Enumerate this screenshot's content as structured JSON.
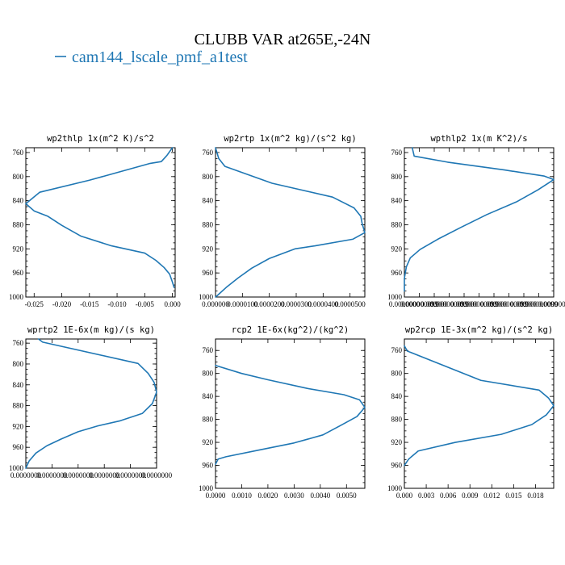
{
  "figure": {
    "title": "CLUBB VAR at265E,-24N",
    "legend_label": "cam144_lscale_pmf_a1test",
    "line_color": "#1f77b4"
  },
  "chart_data": [
    {
      "type": "line",
      "title": "wp2thlp  1x(m^2 K)/s^2",
      "xlim": [
        -0.0265,
        0.0005
      ],
      "ylim": [
        1000,
        752
      ],
      "x_ticks": [
        -0.025,
        -0.02,
        -0.015,
        -0.01,
        -0.005,
        0.0
      ],
      "x_tick_labels": [
        "-0.025",
        "-0.020",
        "-0.015",
        "-0.010",
        "-0.005",
        "0.000"
      ],
      "y_ticks": [
        760,
        800,
        840,
        880,
        920,
        960,
        1000
      ],
      "y_tick_labels": [
        "760",
        "800",
        "840",
        "880",
        "920",
        "960",
        "1000"
      ],
      "series": [
        {
          "points": [
            [
              0.0,
              752
            ],
            [
              -0.001,
              765
            ],
            [
              -0.002,
              775
            ],
            [
              -0.004,
              778
            ],
            [
              -0.015,
              806
            ],
            [
              -0.024,
              826
            ],
            [
              -0.0265,
              845
            ],
            [
              -0.025,
              857
            ],
            [
              -0.0225,
              866
            ],
            [
              -0.02,
              881
            ],
            [
              -0.0165,
              899
            ],
            [
              -0.011,
              915
            ],
            [
              -0.005,
              927
            ],
            [
              -0.003,
              939
            ],
            [
              -0.0015,
              951
            ],
            [
              -0.0005,
              962
            ],
            [
              0.0,
              975
            ],
            [
              0.0003,
              984
            ]
          ]
        }
      ]
    },
    {
      "type": "line",
      "title": "wp2rtp  1x(m^2 kg)/(s^2 kg)",
      "xlim": [
        0.0,
        5.55e-05
      ],
      "ylim": [
        1000,
        752
      ],
      "x_ticks": [
        0.0,
        1e-05,
        2e-05,
        3e-05,
        4e-05,
        5e-05
      ],
      "x_tick_labels": [
        "0.000000",
        "0.0000100",
        "0.0000200",
        "0.0000300",
        "0.0000400",
        "0.0000500"
      ],
      "y_ticks": [
        760,
        800,
        840,
        880,
        920,
        960,
        1000
      ],
      "y_tick_labels": [
        "760",
        "800",
        "840",
        "880",
        "920",
        "960",
        "1000"
      ],
      "series": [
        {
          "points": [
            [
              0.0,
              752
            ],
            [
              1.2e-06,
              770
            ],
            [
              3.5e-06,
              783
            ],
            [
              2.1e-05,
              811
            ],
            [
              4.35e-05,
              834
            ],
            [
              5.15e-05,
              852
            ],
            [
              5.4e-05,
              866
            ],
            [
              5.45e-05,
              878
            ],
            [
              5.55e-05,
              893
            ],
            [
              5.1e-05,
              904
            ],
            [
              3.7e-05,
              915
            ],
            [
              2.95e-05,
              920
            ],
            [
              2e-05,
              936
            ],
            [
              1.35e-05,
              952
            ],
            [
              8.5e-06,
              968
            ],
            [
              4e-06,
              984
            ],
            [
              8e-07,
              997
            ],
            [
              0.0,
              1000
            ]
          ]
        }
      ]
    },
    {
      "type": "line",
      "title": "wpthlp2  1x(m K^2)/s",
      "xlim": [
        0.0,
        3.8e-05
      ],
      "ylim": [
        1000,
        752
      ],
      "x_ticks": [
        0.0,
        3.8e-06,
        7.6e-06,
        1.14e-05,
        1.52e-05,
        1.9e-05,
        2.28e-05,
        2.66e-05,
        3.04e-05,
        3.42e-05,
        3.8e-05
      ],
      "x_tick_labels": [
        "0.0000000",
        "0.000000099",
        "0.000000",
        "0.000000099",
        "0.000000",
        "0.000000099",
        "0.000000",
        "0.000000099",
        "0.000000",
        "0.000000099",
        "0.0000000"
      ],
      "y_ticks": [
        760,
        800,
        840,
        880,
        920,
        960,
        1000
      ],
      "y_tick_labels": [
        "760",
        "800",
        "840",
        "880",
        "920",
        "960",
        "1000"
      ],
      "series": [
        {
          "points": [
            [
              2e-06,
              752
            ],
            [
              2.5e-06,
              766
            ],
            [
              1.1e-05,
              776
            ],
            [
              2.55e-05,
              789
            ],
            [
              3.55e-05,
              799
            ],
            [
              3.8e-05,
              805
            ],
            [
              3.4e-05,
              822
            ],
            [
              2.85e-05,
              842
            ],
            [
              2.1e-05,
              863
            ],
            [
              1.45e-05,
              884
            ],
            [
              8.5e-06,
              904
            ],
            [
              4e-06,
              921
            ],
            [
              1.5e-06,
              935
            ],
            [
              5e-07,
              950
            ],
            [
              0.0,
              969
            ],
            [
              0.0,
              990
            ]
          ]
        }
      ]
    },
    {
      "type": "line",
      "title": "wprtp2  1E-6x(m kg)/(s kg)",
      "xlim": [
        0.0,
        0.0155
      ],
      "ylim": [
        1000,
        752
      ],
      "x_ticks": [
        0.0,
        0.0031,
        0.0062,
        0.0093,
        0.0124,
        0.0155
      ],
      "x_tick_labels": [
        "0.0000000",
        "0.0000000",
        "0.0000000",
        "0.0000000",
        "0.0000000",
        "0.0000000"
      ],
      "y_ticks": [
        760,
        800,
        840,
        880,
        920,
        960,
        1000
      ],
      "y_tick_labels": [
        "760",
        "800",
        "840",
        "880",
        "920",
        "960",
        "1000"
      ],
      "series": [
        {
          "points": [
            [
              0.0015,
              752
            ],
            [
              0.002,
              758
            ],
            [
              0.0133,
              799
            ],
            [
              0.0145,
              818
            ],
            [
              0.0152,
              835
            ],
            [
              0.0155,
              854
            ],
            [
              0.015,
              876
            ],
            [
              0.0138,
              895
            ],
            [
              0.0112,
              909
            ],
            [
              0.0085,
              919
            ],
            [
              0.0062,
              930
            ],
            [
              0.0042,
              944
            ],
            [
              0.0025,
              957
            ],
            [
              0.0012,
              971
            ],
            [
              0.0004,
              986
            ],
            [
              0.0,
              1000
            ]
          ]
        }
      ]
    },
    {
      "type": "line",
      "title": "rcp2  1E-6x(kg^2)/(kg^2)",
      "xlim": [
        0.0,
        0.0057
      ],
      "ylim": [
        1000,
        740
      ],
      "x_ticks": [
        0.0,
        0.001,
        0.002,
        0.003,
        0.004,
        0.005
      ],
      "x_tick_labels": [
        "0.0000",
        "0.0010",
        "0.0020",
        "0.0030",
        "0.0040",
        "0.0050"
      ],
      "y_ticks": [
        760,
        800,
        840,
        880,
        920,
        960,
        1000
      ],
      "y_tick_labels": [
        "760",
        "800",
        "840",
        "880",
        "920",
        "960",
        "1000"
      ],
      "series": [
        {
          "points": [
            [
              0.0,
              786
            ],
            [
              0.001,
              800
            ],
            [
              0.002,
              811
            ],
            [
              0.0035,
              826
            ],
            [
              0.0049,
              837
            ],
            [
              0.0055,
              846
            ],
            [
              0.0057,
              859
            ],
            [
              0.0054,
              875
            ],
            [
              0.0048,
              890
            ],
            [
              0.0041,
              907
            ],
            [
              0.003,
              921
            ],
            [
              0.0017,
              933
            ],
            [
              0.0004,
              945
            ],
            [
              0.0001,
              949
            ],
            [
              0.0,
              958
            ]
          ]
        }
      ]
    },
    {
      "type": "line",
      "title": "wp2rcp  1E-3x(m^2 kg)/(s^2 kg)",
      "xlim": [
        0.0,
        0.0205
      ],
      "ylim": [
        1000,
        740
      ],
      "x_ticks": [
        0.0,
        0.003,
        0.006,
        0.009,
        0.012,
        0.015,
        0.018
      ],
      "x_tick_labels": [
        "0.000",
        "0.003",
        "0.006",
        "0.009",
        "0.012",
        "0.015",
        "0.018"
      ],
      "y_ticks": [
        760,
        800,
        840,
        880,
        920,
        960,
        1000
      ],
      "y_tick_labels": [
        "760",
        "800",
        "840",
        "880",
        "920",
        "960",
        "1000"
      ],
      "series": [
        {
          "points": [
            [
              0.0,
              752
            ],
            [
              0.0004,
              761
            ],
            [
              0.0105,
              812
            ],
            [
              0.0185,
              829
            ],
            [
              0.0198,
              843
            ],
            [
              0.0205,
              856
            ],
            [
              0.0195,
              872
            ],
            [
              0.0175,
              889
            ],
            [
              0.0133,
              906
            ],
            [
              0.007,
              920
            ],
            [
              0.0019,
              935
            ],
            [
              0.0006,
              949
            ],
            [
              0.0,
              960
            ]
          ]
        }
      ]
    }
  ]
}
